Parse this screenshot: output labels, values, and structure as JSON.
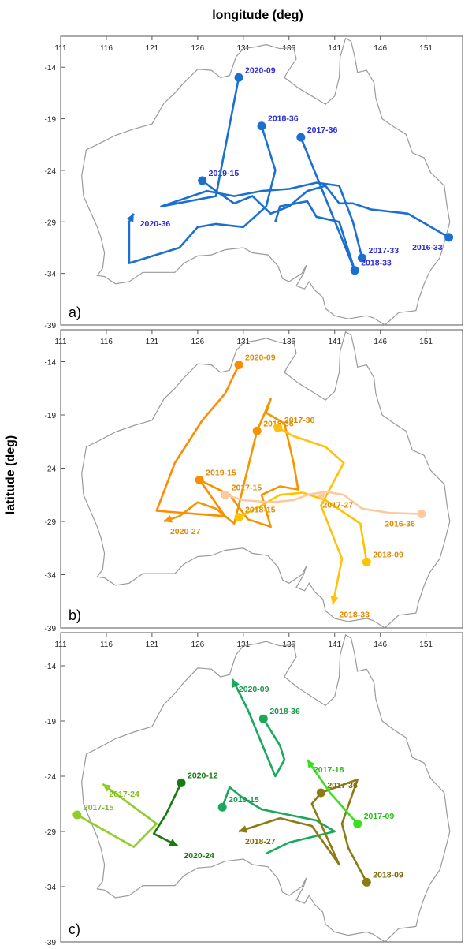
{
  "figure": {
    "xlabel": "longitude (deg)",
    "ylabel": "latitude (deg)"
  },
  "chart_data": [
    {
      "type": "line",
      "panel_label": "a)",
      "xlim": [
        111,
        155
      ],
      "ylim": [
        -39,
        -11
      ],
      "x_ticks": [
        111,
        116,
        121,
        126,
        131,
        136,
        141,
        146,
        151
      ],
      "y_ticks": [
        -14,
        -19,
        -24,
        -29,
        -34,
        -39
      ],
      "label_color": "#2b2bd9",
      "series": [
        {
          "color": "#1a6fd1",
          "points": [
            [
              153.5,
              -30.5
            ],
            [
              149,
              -28.2
            ],
            [
              145,
              -27.8
            ],
            [
              143,
              -27.2
            ],
            [
              141.5,
              -27.2
            ],
            [
              140,
              -25.5
            ],
            [
              138,
              -26
            ],
            [
              136,
              -27.5
            ],
            [
              134,
              -28.2
            ],
            [
              132,
              -26.5
            ],
            [
              130,
              -27.2
            ],
            [
              128,
              -26
            ],
            [
              126.5,
              -25
            ]
          ],
          "markers": [
            {
              "x": 153.5,
              "y": -30.5,
              "label": "2016-33",
              "shape": "circle"
            },
            {
              "x": 126.5,
              "y": -25,
              "label": "2019-15",
              "shape": "circle"
            }
          ]
        },
        {
          "color": "#1a6fd1",
          "points": [
            [
              144,
              -32.5
            ],
            [
              143,
              -29
            ],
            [
              141.5,
              -25.5
            ],
            [
              139,
              -25.2
            ],
            [
              136,
              -25.8
            ],
            [
              133,
              -26
            ],
            [
              130,
              -26.5
            ],
            [
              127,
              -26
            ],
            [
              122,
              -27.5
            ],
            [
              128,
              -26.5
            ],
            [
              130.5,
              -15
            ]
          ],
          "markers": [
            {
              "x": 144,
              "y": -32.5,
              "label": "2017-33",
              "shape": "circle"
            },
            {
              "x": 130.5,
              "y": -15,
              "label": "2020-09",
              "shape": "circle"
            }
          ]
        },
        {
          "color": "#1a6fd1",
          "points": [
            [
              133,
              -19.7
            ],
            [
              134.5,
              -24
            ],
            [
              133.5,
              -27.5
            ],
            [
              131,
              -29.5
            ],
            [
              128,
              -29.2
            ],
            [
              126,
              -29.5
            ],
            [
              124,
              -31.5
            ],
            [
              118.5,
              -33
            ],
            [
              118.5,
              -29
            ],
            [
              119,
              -28.2
            ]
          ],
          "markers": [
            {
              "x": 133,
              "y": -19.7,
              "label": "2018-36",
              "shape": "circle"
            },
            {
              "x": 119,
              "y": -28.2,
              "label": "2020-36",
              "shape": "arrow"
            }
          ]
        },
        {
          "color": "#1a6fd1",
          "points": [
            [
              137.3,
              -20.8
            ],
            [
              143.2,
              -33.7
            ],
            [
              141.5,
              -29
            ],
            [
              139,
              -28.5
            ],
            [
              138,
              -27
            ],
            [
              135,
              -27.5
            ],
            [
              134.5,
              -29
            ]
          ],
          "markers": [
            {
              "x": 137.3,
              "y": -20.8,
              "label": "2017-36",
              "shape": "circle"
            },
            {
              "x": 143.2,
              "y": -33.7,
              "label": "2018-33",
              "shape": "circle"
            }
          ]
        }
      ]
    },
    {
      "type": "line",
      "panel_label": "b)",
      "xlim": [
        111,
        155
      ],
      "ylim": [
        -39,
        -11
      ],
      "x_ticks": [
        111,
        116,
        121,
        126,
        131,
        136,
        141,
        146,
        151
      ],
      "y_ticks": [
        -14,
        -19,
        -24,
        -29,
        -34,
        -39
      ],
      "label_color": "#e08a00",
      "series": [
        {
          "color": "#ff8c00",
          "points": [
            [
              130.5,
              -14.3
            ],
            [
              129,
              -17
            ],
            [
              126.5,
              -19.5
            ],
            [
              123.5,
              -23.5
            ],
            [
              121.5,
              -28
            ],
            [
              129,
              -28.5
            ],
            [
              126.2,
              -25.1
            ]
          ],
          "markers": [
            {
              "x": 130.5,
              "y": -14.3,
              "label": "2020-09",
              "shape": "circle"
            },
            {
              "x": 126.2,
              "y": -25.1,
              "label": "2019-15",
              "shape": "circle"
            }
          ]
        },
        {
          "color": "#f59400",
          "points": [
            [
              126.2,
              -25.1
            ],
            [
              129.5,
              -26.5
            ],
            [
              131.5,
              -28.8
            ],
            [
              134,
              -29.5
            ],
            [
              133,
              -26.5
            ],
            [
              135,
              -25.7
            ],
            [
              137,
              -26
            ],
            [
              136.5,
              -23.5
            ],
            [
              135.5,
              -19.8
            ],
            [
              133.5,
              -18.8
            ],
            [
              134,
              -17.5
            ],
            [
              132.5,
              -20.5
            ],
            [
              130,
              -29.2
            ],
            [
              128,
              -27.8
            ],
            [
              126,
              -27.2
            ],
            [
              124,
              -28.5
            ],
            [
              122.3,
              -29
            ]
          ],
          "markers": [
            {
              "x": 132.5,
              "y": -20.5,
              "label": "2018-36",
              "shape": "circle"
            },
            {
              "x": 122.3,
              "y": -29,
              "label": "2020-27",
              "shape": "arrow"
            }
          ]
        },
        {
          "color": "#ffc20a",
          "points": [
            [
              134.8,
              -20.2
            ],
            [
              136.5,
              -21
            ],
            [
              140,
              -22
            ],
            [
              142,
              -23.5
            ],
            [
              139.5,
              -27.5
            ],
            [
              141.8,
              -32.5
            ],
            [
              140.8,
              -36.8
            ]
          ],
          "markers": [
            {
              "x": 134.8,
              "y": -20.2,
              "label": "2017-36",
              "shape": "circle"
            },
            {
              "x": 140.8,
              "y": -36.8,
              "label": "2018-33",
              "shape": "arrow"
            }
          ]
        },
        {
          "color": "#ffc400",
          "points": [
            [
              130.5,
              -28.6
            ],
            [
              133,
              -27.5
            ],
            [
              135,
              -26.5
            ],
            [
              137.5,
              -26.3
            ],
            [
              140,
              -27
            ],
            [
              143.8,
              -29.2
            ],
            [
              144.5,
              -32.8
            ]
          ],
          "markers": [
            {
              "x": 130.5,
              "y": -28.6,
              "label": "2018-15",
              "shape": "circle"
            },
            {
              "x": 144.5,
              "y": -32.8,
              "label": "2018-09",
              "shape": "circle"
            }
          ]
        },
        {
          "color": "#ffc9a0",
          "points": [
            [
              129,
              -26.5
            ],
            [
              131,
              -27
            ],
            [
              134,
              -27.2
            ],
            [
              136.5,
              -27
            ],
            [
              138,
              -26.5
            ],
            [
              140,
              -26.2
            ],
            [
              142,
              -26.5
            ],
            [
              144,
              -27.8
            ],
            [
              147,
              -28.2
            ],
            [
              150.5,
              -28.3
            ]
          ],
          "markers": [
            {
              "x": 129,
              "y": -26.5,
              "label": "2017-15",
              "shape": "circle"
            },
            {
              "x": 150.5,
              "y": -28.3,
              "label": "2016-36",
              "shape": "circle"
            },
            {
              "x": 139,
              "y": -26.5,
              "label": "2017-27",
              "shape": "arrow"
            }
          ]
        }
      ]
    },
    {
      "type": "line",
      "panel_label": "c)",
      "xlim": [
        111,
        155
      ],
      "ylim": [
        -39,
        -11
      ],
      "x_ticks": [
        111,
        116,
        121,
        126,
        131,
        136,
        141,
        146,
        151
      ],
      "y_ticks": [
        -14,
        -19,
        -24,
        -29,
        -34,
        -39
      ],
      "series": [
        {
          "color": "#1aa85a",
          "label_color": "#1a9850",
          "points": [
            [
              133.2,
              -18.8
            ],
            [
              135,
              -21.2
            ],
            [
              135.5,
              -22.5
            ],
            [
              134.5,
              -24
            ],
            [
              133.5,
              -22
            ],
            [
              131.5,
              -18
            ],
            [
              129.8,
              -15.2
            ]
          ],
          "markers": [
            {
              "x": 133.2,
              "y": -18.8,
              "label": "2018-36",
              "shape": "circle"
            },
            {
              "x": 129.8,
              "y": -15.2,
              "label": "2020-09",
              "shape": "arrow"
            }
          ]
        },
        {
          "color": "#1aa85a",
          "label_color": "#1a9850",
          "points": [
            [
              128.7,
              -26.8
            ],
            [
              129.5,
              -25
            ],
            [
              131,
              -26
            ],
            [
              133,
              -27
            ],
            [
              136,
              -27.5
            ],
            [
              139,
              -28
            ],
            [
              141,
              -29
            ],
            [
              138.5,
              -29.5
            ],
            [
              136,
              -30
            ],
            [
              133.5,
              -31
            ]
          ],
          "markers": [
            {
              "x": 128.7,
              "y": -26.8,
              "label": "2019-15",
              "shape": "circle"
            }
          ]
        },
        {
          "color": "#8c7a12",
          "label_color": "#7a6a0a",
          "points": [
            [
              144.5,
              -33.6
            ],
            [
              142.5,
              -30.5
            ],
            [
              141.8,
              -28.3
            ],
            [
              143.5,
              -24.3
            ],
            [
              139.5,
              -25.5
            ],
            [
              138.5,
              -26.5
            ],
            [
              141.5,
              -32
            ],
            [
              138.5,
              -28.5
            ],
            [
              135,
              -27.8
            ],
            [
              130.5,
              -29
            ]
          ],
          "markers": [
            {
              "x": 144.5,
              "y": -33.6,
              "label": "2018-09",
              "shape": "circle"
            },
            {
              "x": 139.5,
              "y": -25.5,
              "label": "2017-36",
              "shape": "circle"
            },
            {
              "x": 130.5,
              "y": -29,
              "label": "2018-27",
              "shape": "arrow"
            }
          ]
        },
        {
          "color": "#39e020",
          "label_color": "#22c012",
          "points": [
            [
              143.5,
              -28.3
            ],
            [
              140.5,
              -25.5
            ],
            [
              138,
              -22.5
            ]
          ],
          "markers": [
            {
              "x": 143.5,
              "y": -28.3,
              "label": "2017-09",
              "shape": "circle"
            },
            {
              "x": 138,
              "y": -22.5,
              "label": "2017-18",
              "shape": "arrow"
            }
          ]
        },
        {
          "color": "#8fce26",
          "label_color": "#7dbd1a",
          "points": [
            [
              112.8,
              -27.5
            ],
            [
              119,
              -30.4
            ],
            [
              121.5,
              -28.3
            ],
            [
              115.6,
              -24.7
            ]
          ],
          "markers": [
            {
              "x": 112.8,
              "y": -27.5,
              "label": "2017-15",
              "shape": "circle"
            },
            {
              "x": 115.6,
              "y": -24.7,
              "label": "2017-24",
              "shape": "arrow"
            }
          ]
        },
        {
          "color": "#1a7a12",
          "label_color": "#147a0a",
          "points": [
            [
              124.2,
              -24.6
            ],
            [
              122.5,
              -27.5
            ],
            [
              121.2,
              -29.2
            ],
            [
              123.8,
              -30.3
            ]
          ],
          "markers": [
            {
              "x": 124.2,
              "y": -24.6,
              "label": "2020-12",
              "shape": "circle"
            },
            {
              "x": 123.8,
              "y": -30.3,
              "label": "2020-24",
              "shape": "arrow"
            }
          ]
        }
      ]
    }
  ]
}
